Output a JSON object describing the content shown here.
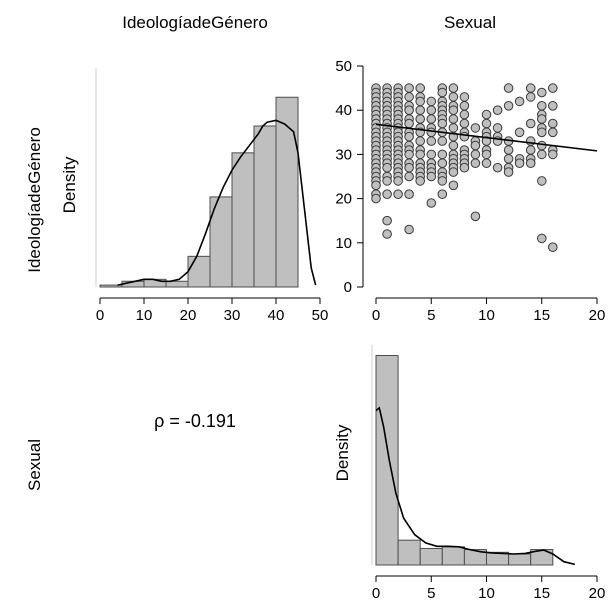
{
  "columns": [
    "IdeologíadeGénero",
    "Sexual"
  ],
  "rows": [
    "IdeologíadeGénero",
    "Sexual"
  ],
  "colors": {
    "bar_fill": "#bfbfbf",
    "bar_stroke": "#4d4d4d",
    "point_fill": "#bfbfbf",
    "point_stroke": "#3a3a3a",
    "line": "#000000"
  },
  "chart_data": [
    {
      "type": "bar",
      "panel": "histogram-ideologia",
      "ylabel": "Density",
      "xlim": [
        0,
        50
      ],
      "x_ticks": [
        "0",
        "10",
        "20",
        "30",
        "40",
        "50"
      ],
      "bins": [
        [
          0,
          5
        ],
        [
          5,
          10
        ],
        [
          10,
          15
        ],
        [
          15,
          20
        ],
        [
          20,
          25
        ],
        [
          25,
          30
        ],
        [
          30,
          35
        ],
        [
          35,
          40
        ],
        [
          40,
          45
        ]
      ],
      "values": [
        0.001,
        0.003,
        0.004,
        0.003,
        0.016,
        0.047,
        0.07,
        0.084,
        0.099
      ],
      "density_curve": {
        "x": [
          4,
          6,
          8,
          10,
          12,
          14,
          16,
          18,
          20,
          22,
          24,
          26,
          28,
          30,
          32,
          34,
          36,
          37,
          38,
          40,
          42,
          44,
          45,
          46,
          48,
          49
        ],
        "y": [
          0.001,
          0.002,
          0.003,
          0.004,
          0.004,
          0.003,
          0.003,
          0.004,
          0.008,
          0.016,
          0.028,
          0.041,
          0.052,
          0.061,
          0.068,
          0.074,
          0.08,
          0.084,
          0.086,
          0.087,
          0.085,
          0.081,
          0.07,
          0.05,
          0.01,
          0.001
        ]
      },
      "ylim": [
        0,
        0.108
      ]
    },
    {
      "type": "scatter",
      "panel": "scatter-sexual-vs-ideologia",
      "xlim": [
        0,
        20
      ],
      "ylim": [
        0,
        50
      ],
      "x_ticks": [
        "0",
        "5",
        "10",
        "15",
        "20"
      ],
      "y_ticks": [
        "0",
        "10",
        "20",
        "30",
        "40",
        "50"
      ],
      "points": [
        [
          0,
          45
        ],
        [
          0,
          44
        ],
        [
          0,
          43
        ],
        [
          0,
          42
        ],
        [
          0,
          41
        ],
        [
          0,
          40
        ],
        [
          0,
          39
        ],
        [
          0,
          38
        ],
        [
          0,
          37
        ],
        [
          0,
          36
        ],
        [
          0,
          35
        ],
        [
          0,
          34
        ],
        [
          0,
          33
        ],
        [
          0,
          32
        ],
        [
          0,
          31
        ],
        [
          0,
          30
        ],
        [
          0,
          29
        ],
        [
          0,
          28
        ],
        [
          0,
          27
        ],
        [
          0,
          26
        ],
        [
          0,
          25
        ],
        [
          0,
          24
        ],
        [
          0,
          23
        ],
        [
          0,
          21
        ],
        [
          0,
          20
        ],
        [
          1,
          45
        ],
        [
          1,
          44
        ],
        [
          1,
          43
        ],
        [
          1,
          42
        ],
        [
          1,
          41
        ],
        [
          1,
          40
        ],
        [
          1,
          39
        ],
        [
          1,
          38
        ],
        [
          1,
          37
        ],
        [
          1,
          36
        ],
        [
          1,
          35
        ],
        [
          1,
          34
        ],
        [
          1,
          33
        ],
        [
          1,
          32
        ],
        [
          1,
          31
        ],
        [
          1,
          30
        ],
        [
          1,
          29
        ],
        [
          1,
          28
        ],
        [
          1,
          27
        ],
        [
          1,
          25
        ],
        [
          1,
          24
        ],
        [
          1,
          21
        ],
        [
          1,
          15
        ],
        [
          1,
          12
        ],
        [
          2,
          45
        ],
        [
          2,
          44
        ],
        [
          2,
          43
        ],
        [
          2,
          42
        ],
        [
          2,
          41
        ],
        [
          2,
          40
        ],
        [
          2,
          39
        ],
        [
          2,
          38
        ],
        [
          2,
          37
        ],
        [
          2,
          36
        ],
        [
          2,
          35
        ],
        [
          2,
          34
        ],
        [
          2,
          33
        ],
        [
          2,
          32
        ],
        [
          2,
          31
        ],
        [
          2,
          30
        ],
        [
          2,
          29
        ],
        [
          2,
          28
        ],
        [
          2,
          27
        ],
        [
          2,
          26
        ],
        [
          2,
          25
        ],
        [
          2,
          24
        ],
        [
          2,
          21
        ],
        [
          3,
          45
        ],
        [
          3,
          43
        ],
        [
          3,
          41
        ],
        [
          3,
          40
        ],
        [
          3,
          38
        ],
        [
          3,
          37
        ],
        [
          3,
          35
        ],
        [
          3,
          34
        ],
        [
          3,
          32
        ],
        [
          3,
          31
        ],
        [
          3,
          30
        ],
        [
          3,
          28
        ],
        [
          3,
          27
        ],
        [
          3,
          25
        ],
        [
          3,
          21
        ],
        [
          3,
          13
        ],
        [
          4,
          45
        ],
        [
          4,
          43
        ],
        [
          4,
          42
        ],
        [
          4,
          40
        ],
        [
          4,
          38
        ],
        [
          4,
          36
        ],
        [
          4,
          35
        ],
        [
          4,
          33
        ],
        [
          4,
          31
        ],
        [
          4,
          30
        ],
        [
          4,
          28
        ],
        [
          4,
          27
        ],
        [
          4,
          26
        ],
        [
          4,
          25
        ],
        [
          4,
          24
        ],
        [
          5,
          42
        ],
        [
          5,
          40
        ],
        [
          5,
          38
        ],
        [
          5,
          36
        ],
        [
          5,
          35
        ],
        [
          5,
          33
        ],
        [
          5,
          30
        ],
        [
          5,
          28
        ],
        [
          5,
          27
        ],
        [
          5,
          26
        ],
        [
          5,
          25
        ],
        [
          5,
          19
        ],
        [
          6,
          45
        ],
        [
          6,
          44
        ],
        [
          6,
          42
        ],
        [
          6,
          41
        ],
        [
          6,
          40
        ],
        [
          6,
          39
        ],
        [
          6,
          38
        ],
        [
          6,
          37
        ],
        [
          6,
          35
        ],
        [
          6,
          33
        ],
        [
          6,
          30
        ],
        [
          6,
          28
        ],
        [
          6,
          26
        ],
        [
          6,
          25
        ],
        [
          6,
          24
        ],
        [
          6,
          21
        ],
        [
          7,
          45
        ],
        [
          7,
          43
        ],
        [
          7,
          41
        ],
        [
          7,
          40
        ],
        [
          7,
          38
        ],
        [
          7,
          36
        ],
        [
          7,
          34
        ],
        [
          7,
          32
        ],
        [
          7,
          30
        ],
        [
          7,
          29
        ],
        [
          7,
          28
        ],
        [
          7,
          27
        ],
        [
          7,
          26
        ],
        [
          7,
          23
        ],
        [
          8,
          43
        ],
        [
          8,
          41
        ],
        [
          8,
          39
        ],
        [
          8,
          37
        ],
        [
          8,
          35
        ],
        [
          8,
          34
        ],
        [
          8,
          31
        ],
        [
          8,
          30
        ],
        [
          8,
          29
        ],
        [
          8,
          28
        ],
        [
          8,
          27
        ],
        [
          9,
          36
        ],
        [
          9,
          33
        ],
        [
          9,
          32
        ],
        [
          9,
          30
        ],
        [
          9,
          28
        ],
        [
          9,
          16
        ],
        [
          10,
          39
        ],
        [
          10,
          37
        ],
        [
          10,
          35
        ],
        [
          10,
          34
        ],
        [
          10,
          33
        ],
        [
          10,
          31
        ],
        [
          10,
          30
        ],
        [
          10,
          28
        ],
        [
          11,
          40
        ],
        [
          11,
          36
        ],
        [
          11,
          34
        ],
        [
          11,
          33
        ],
        [
          11,
          27
        ],
        [
          12,
          45
        ],
        [
          12,
          41
        ],
        [
          12,
          33
        ],
        [
          12,
          31
        ],
        [
          12,
          29
        ],
        [
          12,
          27
        ],
        [
          12,
          26
        ],
        [
          13,
          42
        ],
        [
          13,
          35
        ],
        [
          13,
          29
        ],
        [
          13,
          28
        ],
        [
          14,
          45
        ],
        [
          14,
          43
        ],
        [
          14,
          37
        ],
        [
          14,
          33
        ],
        [
          14,
          31
        ],
        [
          14,
          29
        ],
        [
          14,
          28
        ],
        [
          15,
          44
        ],
        [
          15,
          41
        ],
        [
          15,
          39
        ],
        [
          15,
          38
        ],
        [
          15,
          36
        ],
        [
          15,
          35
        ],
        [
          15,
          32
        ],
        [
          15,
          30
        ],
        [
          15,
          24
        ],
        [
          15,
          11
        ],
        [
          16,
          45
        ],
        [
          16,
          41
        ],
        [
          16,
          37
        ],
        [
          16,
          35
        ],
        [
          16,
          31
        ],
        [
          16,
          30
        ],
        [
          16,
          9
        ]
      ],
      "fit_line": {
        "x": [
          0,
          20
        ],
        "y": [
          36.8,
          30.8
        ]
      }
    },
    {
      "type": "bar",
      "panel": "histogram-sexual",
      "ylabel": "Density",
      "xlim": [
        0,
        20
      ],
      "x_ticks": [
        "0",
        "5",
        "10",
        "15",
        "20"
      ],
      "bins": [
        [
          0,
          2
        ],
        [
          2,
          4
        ],
        [
          4,
          6
        ],
        [
          6,
          8
        ],
        [
          8,
          10
        ],
        [
          10,
          12
        ],
        [
          12,
          14
        ],
        [
          14,
          16
        ]
      ],
      "values": [
        0.38,
        0.045,
        0.03,
        0.033,
        0.028,
        0.023,
        0.02,
        0.028
      ],
      "density_curve": {
        "x": [
          0,
          0.3,
          0.7,
          1.2,
          1.8,
          2.5,
          3.5,
          4.5,
          5.5,
          6.5,
          7.5,
          8.5,
          9.5,
          10.5,
          11.5,
          12.5,
          13.5,
          14.5,
          15.2,
          16,
          17,
          18
        ],
        "y": [
          0.28,
          0.285,
          0.25,
          0.19,
          0.13,
          0.085,
          0.055,
          0.04,
          0.034,
          0.034,
          0.033,
          0.028,
          0.024,
          0.022,
          0.021,
          0.02,
          0.021,
          0.025,
          0.027,
          0.02,
          0.006,
          0.001
        ]
      },
      "ylim": [
        0,
        0.39
      ]
    }
  ],
  "correlation": {
    "text": "ρ = -0.191"
  }
}
